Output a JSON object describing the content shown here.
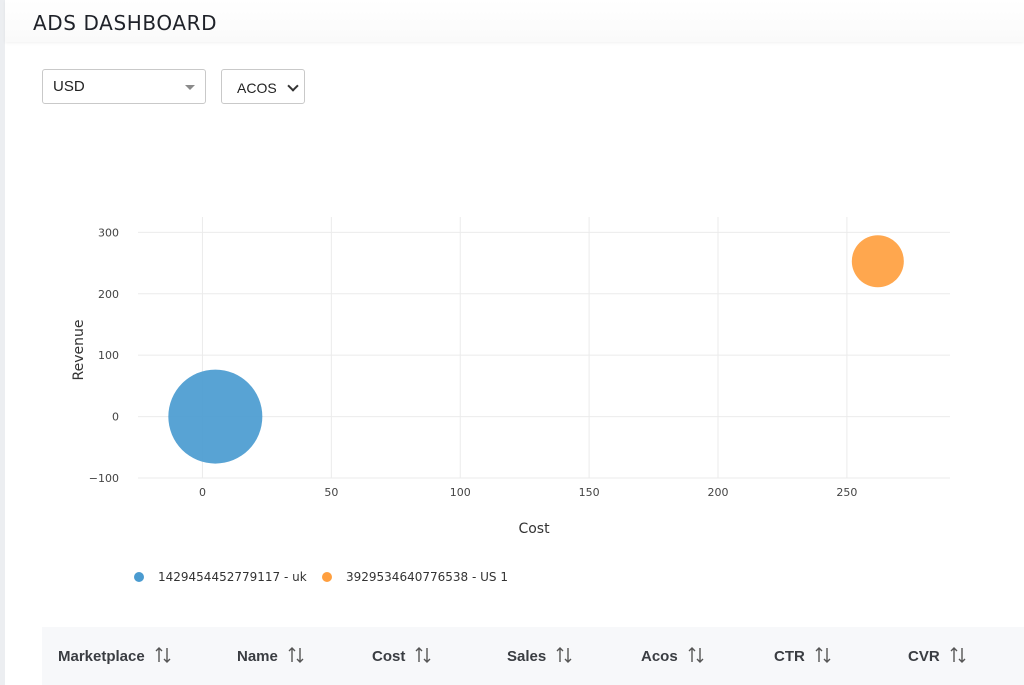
{
  "header": {
    "title": "ADS DASHBOARD"
  },
  "filters": {
    "currency": {
      "value": "USD",
      "icon": "caret-down-icon"
    },
    "metric": {
      "value": "ACOS",
      "icon": "chevron-down-icon"
    }
  },
  "chart_data": {
    "type": "scatter",
    "xlabel": "Cost",
    "ylabel": "Revenue",
    "xlim": [
      -25,
      290
    ],
    "ylim": [
      -100,
      325
    ],
    "x_ticks": [
      0,
      50,
      100,
      150,
      200,
      250
    ],
    "y_ticks": [
      -100,
      0,
      100,
      200,
      300
    ],
    "grid": true,
    "legend_position": "bottom-left",
    "series": [
      {
        "name": "1429454452779117 - uk",
        "color": "#4a9bd0",
        "x": [
          5
        ],
        "y": [
          0
        ],
        "bubble_size": "large"
      },
      {
        "name": "3929534640776538 - US  1",
        "color": "#ff9f3f",
        "x": [
          262
        ],
        "y": [
          253
        ],
        "bubble_size": "small"
      }
    ]
  },
  "table": {
    "columns": [
      "Marketplace",
      "Name",
      "Cost",
      "Sales",
      "Acos",
      "CTR",
      "CVR"
    ],
    "sort_icon": "sort-arrows-icon"
  }
}
